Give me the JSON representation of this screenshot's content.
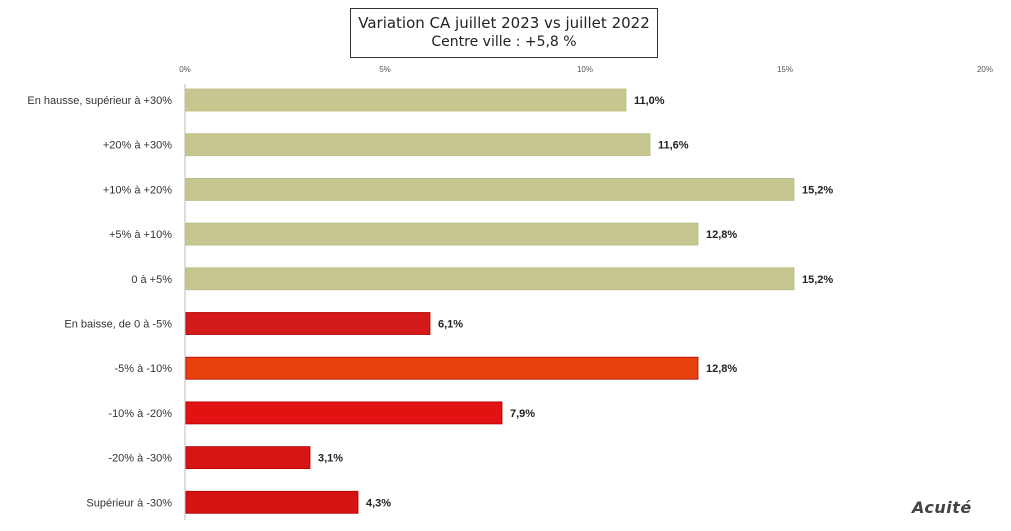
{
  "chart_data": {
    "type": "bar",
    "orientation": "horizontal",
    "title": "Variation CA juillet 2023 vs juillet 2022",
    "subtitle": "Centre ville : +5,8 %",
    "categories": [
      "En hausse, supérieur à +30%",
      "+20% à +30%",
      "+10% à +20%",
      "+5% à +10%",
      "0 à +5%",
      "En baisse, de 0 à -5%",
      "-5% à -10%",
      "-10% à -20%",
      "-20% à -30%",
      "Supérieur à -30%"
    ],
    "values": [
      11.0,
      11.6,
      15.2,
      12.8,
      15.2,
      6.1,
      12.8,
      7.9,
      3.1,
      4.3
    ],
    "value_labels": [
      "11,0%",
      "11,6%",
      "15,2%",
      "12,8%",
      "15,2%",
      "6,1%",
      "12,8%",
      "7,9%",
      "3,1%",
      "4,3%"
    ],
    "xlim": [
      0,
      20
    ],
    "ticks": [
      0,
      5,
      10,
      15,
      20
    ],
    "tick_labels": [
      "0%",
      "5%",
      "10%",
      "15%",
      "20%"
    ],
    "grid": false,
    "legend": "none",
    "colors": [
      "#c6c78f",
      "#c6c78f",
      "#c6c78f",
      "#c6c78f",
      "#c6c78f",
      "#d41a1a",
      "#e8420c",
      "#e31212",
      "#d81515",
      "#d61313"
    ]
  },
  "brand": "Acuité"
}
